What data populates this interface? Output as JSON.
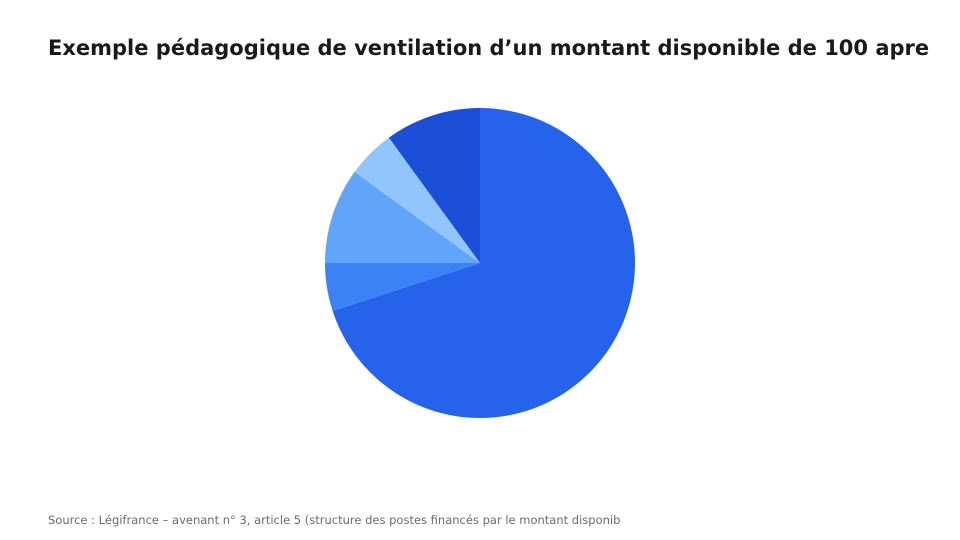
{
  "chart_data": {
    "type": "pie",
    "title": "Exemple pédagogique de ventilation d’un montant disponible de 100 apre",
    "slices": [
      {
        "value": 70,
        "color": "#2563eb"
      },
      {
        "value": 5,
        "color": "#3b82f6"
      },
      {
        "value": 10,
        "color": "#60a5fa"
      },
      {
        "value": 5,
        "color": "#93c5fd"
      },
      {
        "value": 10,
        "color": "#1d4ed8"
      }
    ],
    "start": "top",
    "direction": "clockwise",
    "legend": "none"
  },
  "footer": {
    "source": "Source : Légifrance – avenant n° 3, article 5 (structure des postes financés par le montant disponib"
  }
}
